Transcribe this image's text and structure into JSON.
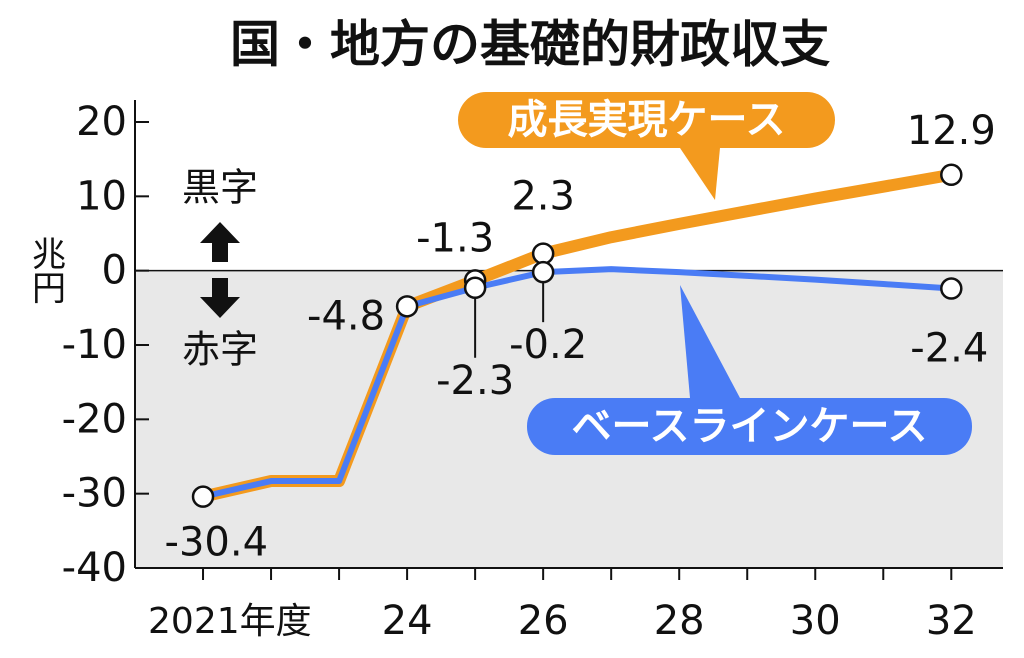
{
  "chart_data": {
    "type": "line",
    "title": "国・地方の基礎的財政収支",
    "y_label": "兆円",
    "annotations": {
      "surplus": "黒字",
      "deficit": "赤字"
    },
    "x": [
      2021,
      2022,
      2023,
      2024,
      2025,
      2026,
      2027,
      2028,
      2029,
      2030,
      2031,
      2032
    ],
    "series": [
      {
        "name": "成長実現ケース",
        "color": "#f39a1e",
        "values": [
          -30.4,
          -28.3,
          -28.3,
          -4.8,
          -1.3,
          2.3,
          4.5,
          6.3,
          8.0,
          9.7,
          11.3,
          12.9
        ],
        "labeled": [
          4,
          5,
          11
        ]
      },
      {
        "name": "ベースラインケース",
        "color": "#4a7cf5",
        "values": [
          -30.4,
          -28.3,
          -28.3,
          -4.8,
          -2.3,
          -0.2,
          0.2,
          -0.2,
          -0.7,
          -1.2,
          -1.8,
          -2.4
        ],
        "labeled": [
          0,
          3,
          4,
          5,
          11
        ]
      }
    ],
    "xlim": [
      2020,
      2032.76
    ],
    "xticks": [
      {
        "value": 2021,
        "label": "2021年度"
      },
      24,
      26,
      28,
      30,
      32
    ],
    "minor_xticks": [
      2022,
      2023,
      2025,
      2027,
      2029,
      2031
    ],
    "ylim": [
      -40,
      20
    ],
    "yticks": [
      20,
      10,
      0,
      -10,
      -20,
      -30,
      -40
    ],
    "negative_region_color": "#e8e8e8"
  }
}
